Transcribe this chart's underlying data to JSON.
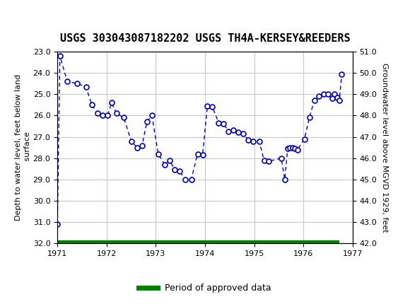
{
  "title": "USGS 303043087182202 USGS TH4A-KERSEY&REEDERS",
  "ylabel_left": "Depth to water level, feet below land\n surface",
  "ylabel_right": "Groundwater level above MGVD 1929, feet",
  "ylim_left": [
    32.0,
    23.0
  ],
  "ylim_right": [
    42.0,
    51.0
  ],
  "xlim": [
    1971.0,
    1977.0
  ],
  "yticks_left": [
    23.0,
    24.0,
    25.0,
    26.0,
    27.0,
    28.0,
    29.0,
    30.0,
    31.0,
    32.0
  ],
  "yticks_right": [
    42.0,
    43.0,
    44.0,
    45.0,
    46.0,
    47.0,
    48.0,
    49.0,
    50.0,
    51.0
  ],
  "xticks": [
    1971,
    1972,
    1973,
    1974,
    1975,
    1976,
    1977
  ],
  "data_x": [
    1971.0,
    1971.05,
    1971.2,
    1971.4,
    1971.58,
    1971.7,
    1971.82,
    1971.92,
    1972.02,
    1972.1,
    1972.2,
    1972.35,
    1972.5,
    1972.62,
    1972.72,
    1972.82,
    1972.92,
    1973.05,
    1973.18,
    1973.28,
    1973.38,
    1973.48,
    1973.6,
    1973.72,
    1973.85,
    1973.95,
    1974.05,
    1974.15,
    1974.28,
    1974.38,
    1974.48,
    1974.58,
    1974.68,
    1974.78,
    1974.88,
    1974.98,
    1975.1,
    1975.2,
    1975.3,
    1975.55,
    1975.62,
    1975.68,
    1975.73,
    1975.78,
    1975.83,
    1975.88,
    1976.02,
    1976.12,
    1976.22,
    1976.32,
    1976.42,
    1976.5,
    1976.58,
    1976.63,
    1976.68,
    1976.73,
    1976.78
  ],
  "data_y": [
    31.1,
    23.2,
    24.4,
    24.5,
    24.65,
    25.5,
    25.9,
    26.0,
    26.0,
    25.4,
    25.9,
    26.1,
    27.2,
    27.5,
    27.4,
    26.3,
    26.0,
    27.8,
    28.3,
    28.1,
    28.55,
    28.6,
    29.0,
    29.0,
    27.8,
    27.85,
    25.55,
    25.6,
    26.35,
    26.4,
    26.75,
    26.7,
    26.8,
    26.85,
    27.15,
    27.2,
    27.2,
    28.1,
    28.15,
    28.0,
    29.0,
    27.55,
    27.5,
    27.5,
    27.55,
    27.6,
    27.1,
    26.1,
    25.3,
    25.1,
    25.0,
    25.0,
    25.2,
    25.0,
    25.15,
    25.3,
    24.05
  ],
  "line_color": "#0000CC",
  "marker_face": "#FFFFFF",
  "marker_edge": "#0000CC",
  "approved_bar_color": "#008000",
  "approved_bar_xstart": 1971.0,
  "approved_bar_xend": 1976.73,
  "approved_bar_y": 32.0,
  "legend_label": "Period of approved data",
  "header_color": "#006633",
  "background_color": "#FFFFFF",
  "grid_color": "#C8C8C8",
  "title_fontsize": 11,
  "axis_label_fontsize": 8,
  "tick_fontsize": 8
}
